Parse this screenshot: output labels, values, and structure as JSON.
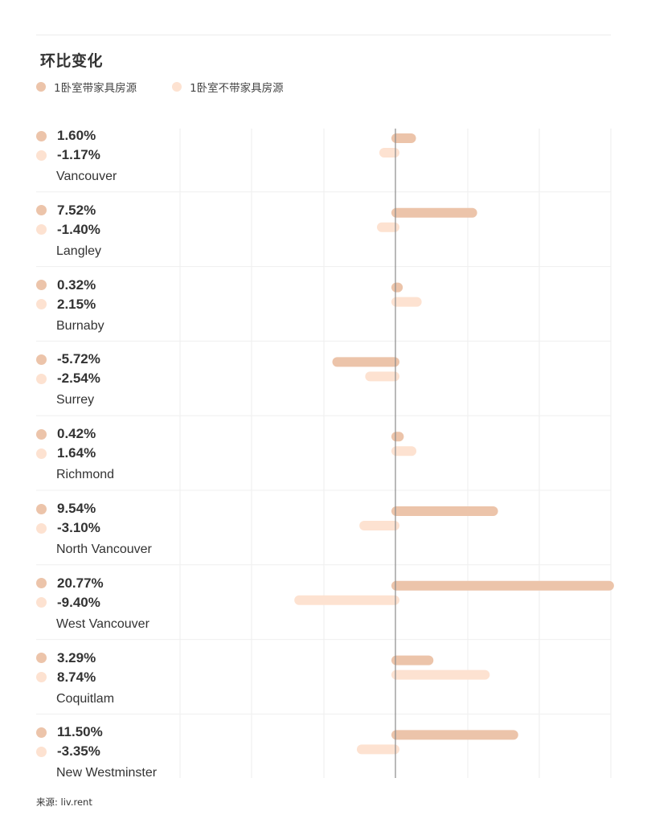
{
  "chart_data": {
    "type": "bar",
    "orientation": "horizontal",
    "title": "环比变化",
    "series": [
      {
        "name": "1卧室带家具房源",
        "color": "#ecc4aa",
        "values": [
          1.6,
          7.52,
          0.32,
          -5.72,
          0.42,
          9.54,
          20.77,
          3.29,
          11.5
        ]
      },
      {
        "name": "1卧室不带家具房源",
        "color": "#fde2d1",
        "values": [
          -1.17,
          -1.4,
          2.15,
          -2.54,
          1.64,
          -3.1,
          -9.4,
          8.74,
          -3.35
        ]
      }
    ],
    "categories": [
      "Vancouver",
      "Langley",
      "Burnaby",
      "Surrey",
      "Richmond",
      "North Vancouver",
      "West Vancouver",
      "Coquitlam",
      "New Westminster"
    ],
    "value_labels": [
      [
        "1.60%",
        "-1.17%"
      ],
      [
        "7.52%",
        "-1.40%"
      ],
      [
        "0.32%",
        "2.15%"
      ],
      [
        "-5.72%",
        "-2.54%"
      ],
      [
        "0.42%",
        "1.64%"
      ],
      [
        "9.54%",
        "-3.10%"
      ],
      [
        "20.77%",
        "-9.40%"
      ],
      [
        "3.29%",
        "8.74%"
      ],
      [
        "11.50%",
        "-3.35%"
      ]
    ],
    "xlim": [
      -15,
      20.77
    ],
    "grid": true,
    "legend_position": "top-left"
  },
  "source": "来源: liv.rent"
}
